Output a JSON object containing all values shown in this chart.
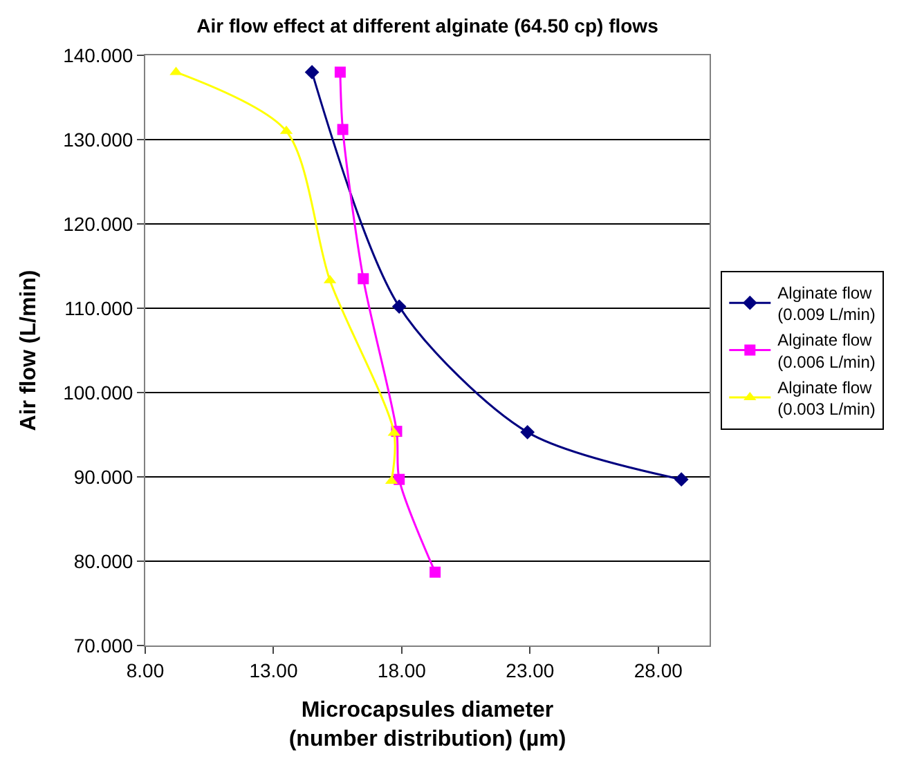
{
  "chart_data": {
    "type": "line",
    "title": "Air flow effect at different alginate (64.50 cp) flows",
    "xlabel": "Microcapsules diameter\n(number distribution) (µm)",
    "ylabel": "Air flow (L/min)",
    "xlim": [
      8,
      30
    ],
    "xticks": [
      {
        "value": 8,
        "label": "8.00"
      },
      {
        "value": 13,
        "label": "13.00"
      },
      {
        "value": 18,
        "label": "18.00"
      },
      {
        "value": 23,
        "label": "23.00"
      },
      {
        "value": 28,
        "label": "28.00"
      }
    ],
    "ylim": [
      70,
      140
    ],
    "yticks": [
      {
        "value": 70,
        "label": "70.000"
      },
      {
        "value": 80,
        "label": "80.000"
      },
      {
        "value": 90,
        "label": "90.000"
      },
      {
        "value": 100,
        "label": "100.000"
      },
      {
        "value": 110,
        "label": "110.000"
      },
      {
        "value": 120,
        "label": "120.000"
      },
      {
        "value": 130,
        "label": "130.000"
      },
      {
        "value": 140,
        "label": "140.000"
      }
    ],
    "grid": "y",
    "legend": "right",
    "series": [
      {
        "name": "Alginate flow\n(0.009 L/min)",
        "color": "#000080",
        "marker": "diamond",
        "x": [
          14.5,
          17.9,
          22.9,
          28.9
        ],
        "values": [
          138,
          110.2,
          95.3,
          89.7
        ]
      },
      {
        "name": "Alginate flow\n(0.006 L/min)",
        "color": "#ff00ff",
        "marker": "square",
        "x": [
          15.6,
          15.7,
          16.5,
          17.8,
          17.9,
          19.3
        ],
        "values": [
          138,
          131.2,
          113.5,
          95.4,
          89.7,
          78.7
        ]
      },
      {
        "name": "Alginate flow\n(0.003 L/min)",
        "color": "#ffff00",
        "marker": "triangle",
        "x": [
          9.2,
          13.5,
          15.2,
          17.7,
          17.6
        ],
        "values": [
          138,
          131,
          113.3,
          95.2,
          89.5
        ]
      }
    ]
  }
}
